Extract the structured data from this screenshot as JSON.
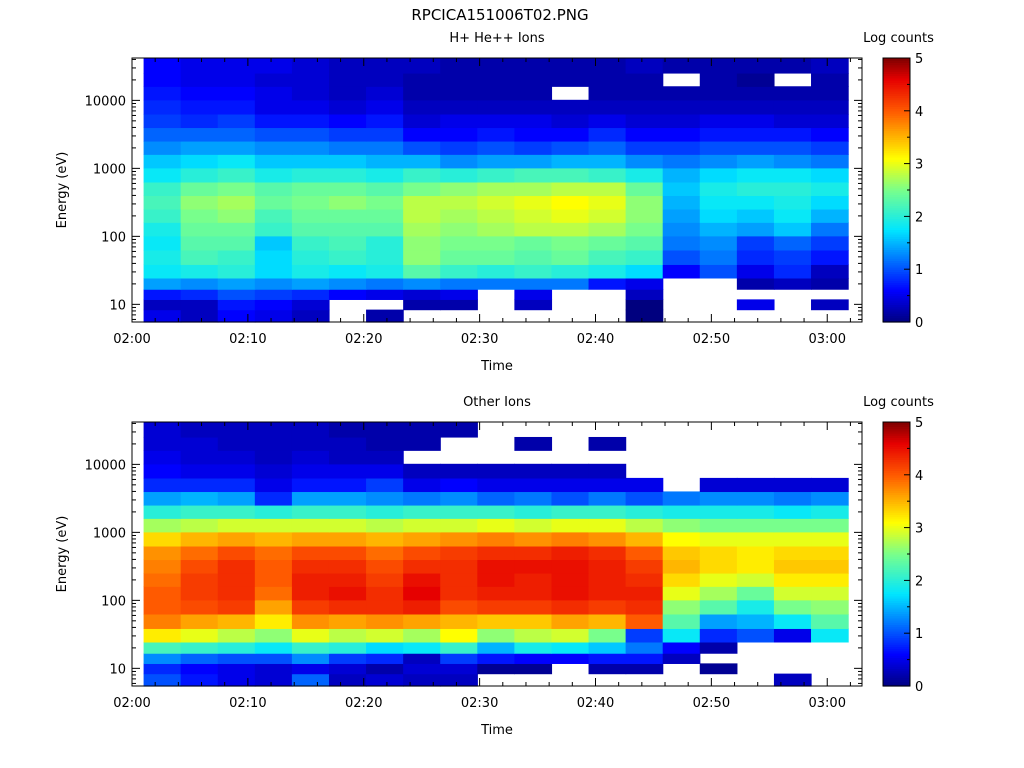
{
  "page_title": "RPCICA151006T02.PNG",
  "chart_data": [
    {
      "type": "heatmap",
      "title": "H+ He++ Ions",
      "xlabel": "Time",
      "ylabel": "Energy (eV)",
      "y_scale": "log",
      "ylim": [
        5.5,
        42000
      ],
      "xlim": [
        "02:00",
        "03:03"
      ],
      "x_tick_labels": [
        "02:00",
        "02:10",
        "02:20",
        "02:30",
        "02:40",
        "02:50",
        "03:00"
      ],
      "y_tick_labels": [
        "10",
        "100",
        "1000",
        "10000"
      ],
      "colorbar": {
        "label": "Log counts",
        "min": 0,
        "max": 5,
        "tick_labels": [
          "0",
          "1",
          "2",
          "3",
          "4",
          "5"
        ]
      },
      "time_start": "02:01:00",
      "time_step_minutes": 3.2,
      "n_time_bins": 19,
      "energy_bin_centers_eV": [
        7,
        10,
        14,
        20,
        30,
        50,
        80,
        130,
        200,
        320,
        500,
        800,
        1300,
        2000,
        3200,
        5000,
        8000,
        13000,
        20000,
        32000
      ],
      "missing_value": -1,
      "values_log_counts": [
        [
          0.5,
          0.3,
          0.6,
          0.5,
          0.3,
          -1,
          0.2,
          -1,
          -1,
          -1,
          -1,
          -1,
          -1,
          0.0,
          -1,
          -1,
          -1,
          -1,
          -1
        ],
        [
          0.3,
          0.3,
          0.7,
          0.6,
          0.4,
          -1,
          -1,
          0.2,
          0.2,
          -1,
          0.3,
          -1,
          -1,
          0.0,
          -1,
          -1,
          0.5,
          -1,
          0.3
        ],
        [
          0.7,
          0.8,
          1.0,
          0.9,
          0.8,
          0.6,
          0.5,
          0.4,
          0.5,
          -1,
          0.5,
          -1,
          -1,
          0.3,
          -1,
          -1,
          -1,
          -1,
          -1
        ],
        [
          1.4,
          1.3,
          1.4,
          1.3,
          1.4,
          1.3,
          1.2,
          1.3,
          1.2,
          1.2,
          1.2,
          1.2,
          0.7,
          0.5,
          -1,
          -1,
          0.2,
          0.3,
          0.2
        ],
        [
          1.8,
          1.9,
          2.0,
          1.7,
          1.9,
          1.8,
          1.9,
          2.3,
          2.1,
          2.0,
          2.1,
          2.0,
          1.9,
          1.7,
          0.6,
          1.0,
          0.5,
          0.8,
          0.3
        ],
        [
          1.9,
          2.2,
          2.1,
          1.7,
          2.0,
          2.1,
          2.0,
          2.6,
          2.4,
          2.4,
          2.3,
          2.4,
          2.2,
          2.1,
          1.0,
          1.2,
          0.8,
          0.9,
          0.7
        ],
        [
          1.8,
          2.3,
          2.3,
          1.6,
          2.1,
          2.2,
          2.0,
          2.6,
          2.5,
          2.5,
          2.4,
          2.5,
          2.4,
          2.3,
          1.2,
          1.3,
          0.9,
          1.1,
          0.9
        ],
        [
          1.9,
          2.4,
          2.4,
          2.1,
          2.3,
          2.3,
          2.3,
          2.7,
          2.6,
          2.7,
          2.8,
          2.8,
          2.7,
          2.5,
          1.3,
          1.5,
          1.4,
          1.6,
          1.2
        ],
        [
          2.1,
          2.5,
          2.6,
          2.2,
          2.4,
          2.4,
          2.4,
          2.8,
          2.7,
          2.8,
          2.9,
          3.0,
          2.9,
          2.6,
          1.4,
          1.7,
          1.6,
          1.8,
          1.5
        ],
        [
          2.2,
          2.6,
          2.7,
          2.4,
          2.5,
          2.6,
          2.5,
          2.8,
          2.8,
          2.9,
          3.0,
          3.1,
          3.0,
          2.6,
          1.5,
          1.8,
          1.8,
          1.9,
          1.7
        ],
        [
          2.1,
          2.4,
          2.5,
          2.3,
          2.4,
          2.4,
          2.3,
          2.5,
          2.6,
          2.7,
          2.7,
          2.8,
          2.8,
          2.4,
          1.6,
          1.9,
          2.0,
          2.0,
          1.9
        ],
        [
          1.8,
          2.0,
          2.1,
          1.9,
          2.0,
          2.0,
          1.9,
          2.1,
          2.0,
          2.1,
          2.2,
          2.2,
          2.1,
          1.9,
          1.5,
          1.7,
          1.8,
          1.8,
          1.7
        ],
        [
          1.6,
          1.7,
          1.8,
          1.6,
          1.6,
          1.6,
          1.5,
          1.5,
          1.3,
          1.4,
          1.4,
          1.5,
          1.5,
          1.3,
          1.2,
          1.3,
          1.4,
          1.3,
          1.2
        ],
        [
          1.3,
          1.4,
          1.4,
          1.3,
          1.3,
          1.2,
          1.2,
          1.0,
          0.9,
          1.0,
          0.9,
          1.0,
          1.1,
          0.9,
          0.9,
          1.0,
          1.0,
          1.0,
          0.9
        ],
        [
          1.1,
          1.1,
          1.1,
          1.0,
          1.0,
          0.9,
          0.9,
          0.6,
          0.6,
          0.7,
          0.6,
          0.6,
          0.8,
          0.6,
          0.6,
          0.7,
          0.7,
          0.7,
          0.6
        ],
        [
          0.9,
          0.8,
          0.9,
          0.7,
          0.7,
          0.6,
          0.7,
          0.4,
          0.5,
          0.5,
          0.5,
          0.4,
          0.5,
          0.4,
          0.4,
          0.5,
          0.5,
          0.4,
          0.4
        ],
        [
          0.8,
          0.7,
          0.7,
          0.5,
          0.5,
          0.4,
          0.5,
          0.3,
          0.3,
          0.3,
          0.3,
          0.3,
          0.3,
          0.3,
          0.3,
          0.3,
          0.3,
          0.3,
          0.3
        ],
        [
          0.7,
          0.6,
          0.6,
          0.5,
          0.4,
          0.3,
          0.4,
          0.2,
          0.2,
          0.2,
          0.2,
          -1,
          0.2,
          0.2,
          0.2,
          0.2,
          0.2,
          0.2,
          0.2
        ],
        [
          0.6,
          0.5,
          0.5,
          0.4,
          0.4,
          0.3,
          0.3,
          0.2,
          0.2,
          0.2,
          0.2,
          0.2,
          0.2,
          0.2,
          -1,
          0.2,
          0.1,
          -1,
          0.2
        ],
        [
          0.6,
          0.5,
          0.5,
          0.5,
          0.4,
          0.3,
          0.3,
          0.3,
          0.2,
          0.2,
          0.2,
          0.2,
          0.2,
          0.3,
          0.2,
          0.2,
          0.2,
          0.2,
          0.3
        ]
      ]
    },
    {
      "type": "heatmap",
      "title": "Other Ions",
      "xlabel": "Time",
      "ylabel": "Energy (eV)",
      "y_scale": "log",
      "ylim": [
        5.5,
        42000
      ],
      "xlim": [
        "02:00",
        "03:03"
      ],
      "x_tick_labels": [
        "02:00",
        "02:10",
        "02:20",
        "02:30",
        "02:40",
        "02:50",
        "03:00"
      ],
      "y_tick_labels": [
        "10",
        "100",
        "1000",
        "10000"
      ],
      "colorbar": {
        "label": "Log counts",
        "min": 0,
        "max": 5,
        "tick_labels": [
          "0",
          "1",
          "2",
          "3",
          "4",
          "5"
        ]
      },
      "time_start": "02:01:00",
      "time_step_minutes": 3.2,
      "n_time_bins": 19,
      "energy_bin_centers_eV": [
        7,
        10,
        14,
        20,
        30,
        50,
        80,
        130,
        200,
        320,
        500,
        800,
        1300,
        2000,
        3200,
        5000,
        8000,
        13000,
        20000,
        32000
      ],
      "missing_value": -1,
      "values_log_counts": [
        [
          1.0,
          0.7,
          0.5,
          0.4,
          1.1,
          0.3,
          0.4,
          0.3,
          0.3,
          -1,
          -1,
          -1,
          -1,
          -1,
          -1,
          -1,
          -1,
          0.3,
          -1
        ],
        [
          0.8,
          0.6,
          0.5,
          0.4,
          0.5,
          0.4,
          0.2,
          0.4,
          0.4,
          0.1,
          0.1,
          -1,
          0.2,
          0.2,
          -1,
          0.1,
          -1,
          -1,
          -1
        ],
        [
          1.3,
          1.1,
          1.0,
          1.0,
          1.3,
          0.9,
          0.8,
          0.3,
          0.9,
          0.7,
          0.6,
          0.6,
          0.7,
          0.7,
          0.3,
          -1,
          -1,
          -1,
          -1
        ],
        [
          2.2,
          2.1,
          2.0,
          1.8,
          2.1,
          2.0,
          1.7,
          1.8,
          2.1,
          1.5,
          1.9,
          1.8,
          1.6,
          1.2,
          0.6,
          0.2,
          -1,
          -1,
          -1
        ],
        [
          3.2,
          3.0,
          2.8,
          2.6,
          3.0,
          2.8,
          2.9,
          2.7,
          3.1,
          2.6,
          2.8,
          2.9,
          2.5,
          0.9,
          1.8,
          0.8,
          1.0,
          0.5,
          1.8
        ],
        [
          3.8,
          3.6,
          3.5,
          3.2,
          3.7,
          3.6,
          3.7,
          3.6,
          3.5,
          3.4,
          3.4,
          3.6,
          3.5,
          4.0,
          2.3,
          1.4,
          1.5,
          1.8,
          2.3
        ],
        [
          4.0,
          4.1,
          4.2,
          3.6,
          4.2,
          4.3,
          4.3,
          4.4,
          4.1,
          4.2,
          4.2,
          4.3,
          4.2,
          4.3,
          2.6,
          2.3,
          1.9,
          2.5,
          2.6
        ],
        [
          4.0,
          4.2,
          4.3,
          3.9,
          4.4,
          4.5,
          4.3,
          4.6,
          4.3,
          4.4,
          4.4,
          4.5,
          4.4,
          4.4,
          3.0,
          2.7,
          2.4,
          2.9,
          2.9
        ],
        [
          3.9,
          4.2,
          4.3,
          4.0,
          4.4,
          4.4,
          4.2,
          4.5,
          4.3,
          4.5,
          4.4,
          4.5,
          4.4,
          4.3,
          3.3,
          3.0,
          2.9,
          3.2,
          3.2
        ],
        [
          3.8,
          4.1,
          4.3,
          4.0,
          4.3,
          4.3,
          4.1,
          4.3,
          4.3,
          4.5,
          4.5,
          4.5,
          4.4,
          4.2,
          3.5,
          3.3,
          3.2,
          3.4,
          3.4
        ],
        [
          3.7,
          3.9,
          4.1,
          3.9,
          4.1,
          4.1,
          3.9,
          4.1,
          4.2,
          4.3,
          4.3,
          4.4,
          4.3,
          4.0,
          3.4,
          3.3,
          3.2,
          3.3,
          3.3
        ],
        [
          3.3,
          3.5,
          3.6,
          3.5,
          3.6,
          3.6,
          3.5,
          3.6,
          3.7,
          3.8,
          3.7,
          3.8,
          3.7,
          3.5,
          3.1,
          3.0,
          3.0,
          3.0,
          3.0
        ],
        [
          2.7,
          2.8,
          2.9,
          2.9,
          2.9,
          2.9,
          2.8,
          2.9,
          2.9,
          3.0,
          2.9,
          3.0,
          3.0,
          2.8,
          2.6,
          2.5,
          2.5,
          2.5,
          2.5
        ],
        [
          2.0,
          2.1,
          2.1,
          2.0,
          2.1,
          2.1,
          2.0,
          2.1,
          2.1,
          2.1,
          2.0,
          2.1,
          2.1,
          2.0,
          1.9,
          1.9,
          1.9,
          1.8,
          1.9
        ],
        [
          1.4,
          1.5,
          1.4,
          0.8,
          1.4,
          1.4,
          1.3,
          1.2,
          1.3,
          1.1,
          1.2,
          1.0,
          1.2,
          1.0,
          1.2,
          1.3,
          1.3,
          1.2,
          1.3
        ],
        [
          0.8,
          0.8,
          0.8,
          0.5,
          0.7,
          0.7,
          0.9,
          0.5,
          0.6,
          0.5,
          0.5,
          0.5,
          0.5,
          0.5,
          -1,
          0.4,
          0.4,
          0.4,
          0.4
        ],
        [
          0.6,
          0.5,
          0.5,
          0.4,
          0.5,
          0.5,
          0.5,
          0.3,
          0.3,
          0.3,
          0.3,
          0.3,
          0.3,
          -1,
          -1,
          -1,
          -1,
          -1,
          -1
        ],
        [
          0.5,
          0.4,
          0.4,
          0.3,
          0.4,
          0.3,
          0.3,
          -1,
          -1,
          -1,
          -1,
          -1,
          -1,
          -1,
          -1,
          -1,
          -1,
          -1,
          -1
        ],
        [
          0.4,
          0.4,
          0.3,
          0.3,
          0.3,
          0.3,
          0.2,
          0.2,
          -1,
          -1,
          0.2,
          -1,
          0.2,
          -1,
          -1,
          -1,
          -1,
          -1,
          -1
        ],
        [
          0.4,
          0.3,
          0.3,
          0.3,
          0.3,
          0.2,
          0.2,
          0.2,
          0.2,
          -1,
          -1,
          -1,
          -1,
          -1,
          -1,
          -1,
          -1,
          -1,
          -1
        ]
      ]
    }
  ]
}
